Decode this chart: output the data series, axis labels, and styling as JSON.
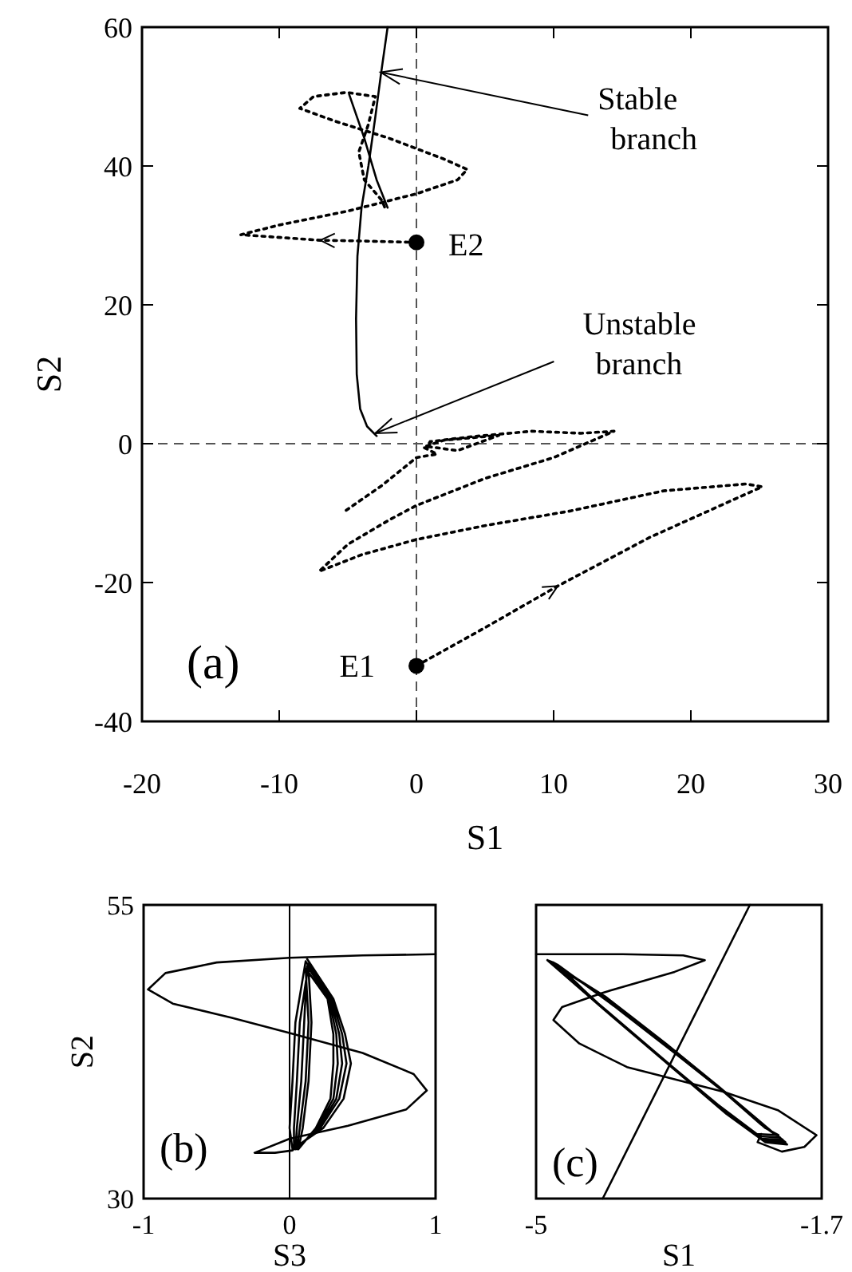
{
  "chart_data": [
    {
      "type": "line",
      "xlabel": "S1",
      "ylabel": "S2",
      "xlim": [
        -20,
        30
      ],
      "xticks": [
        -20,
        -10,
        0,
        10,
        20,
        30
      ],
      "ylim": [
        -40,
        60
      ],
      "yticks": [
        -40,
        -20,
        0,
        20,
        40,
        60
      ],
      "ref_lines": [
        {
          "axis": "x",
          "value": 0,
          "line_style": "dashed",
          "color": "#555555"
        },
        {
          "axis": "y",
          "value": 0,
          "line_style": "dashed",
          "color": "#555555"
        }
      ],
      "series": [
        {
          "color": "#000000",
          "line_style": "solid",
          "x": [
            -2.1,
            -2.6,
            -3.0,
            -3.5,
            -4.0,
            -4.3,
            -4.4,
            -4.35,
            -4.1,
            -3.6,
            -2.9
          ],
          "values": [
            60,
            53,
            47,
            40,
            34,
            27,
            18,
            10,
            5,
            2.5,
            1.1
          ]
        },
        {
          "color": "#000000",
          "line_style": "dotted",
          "x": [
            0,
            -4,
            -7,
            -12.8,
            -10,
            -5,
            0,
            3,
            3.7,
            2,
            -2,
            -6,
            -8.5,
            -7.5,
            -5.1,
            -3,
            -3.5,
            -4.2,
            -3.8,
            -2.5,
            -2.3
          ],
          "values": [
            29,
            29.2,
            29.3,
            30.1,
            31.5,
            33.5,
            36,
            38,
            39.5,
            41,
            44,
            46.5,
            48.3,
            50,
            50.6,
            50,
            46,
            42,
            38,
            35,
            34
          ]
        },
        {
          "color": "#000000",
          "line_style": "solid",
          "x": [
            -4.9,
            -3.8,
            -2.9,
            -2.1
          ],
          "values": [
            50.3,
            44,
            38,
            34
          ]
        },
        {
          "color": "#000000",
          "line_style": "dotted",
          "x": [
            0,
            5,
            10.3,
            17,
            25.2,
            24,
            18,
            11.2,
            5,
            0,
            -4,
            -7.1,
            -5,
            -2,
            0,
            5,
            10,
            14.4,
            12,
            8.4,
            4,
            1,
            0.8,
            3,
            6,
            2,
            0.5,
            1.5,
            0,
            -2.5,
            -5.2
          ],
          "values": [
            -32,
            -26.5,
            -20.5,
            -13.5,
            -6.2,
            -5.8,
            -6.8,
            -9.7,
            -11.8,
            -13.8,
            -16,
            -18.4,
            -14.5,
            -11,
            -8.9,
            -5,
            -2,
            1.8,
            1.5,
            1.8,
            1,
            0.3,
            -0.4,
            -1,
            1.2,
            0.5,
            -0.5,
            -1.5,
            -2,
            -6,
            -9.7
          ]
        },
        {
          "type": "scatter",
          "color": "#000000",
          "marker": "circle",
          "x": [
            0,
            0
          ],
          "values": [
            29,
            -32
          ]
        }
      ],
      "annotations": [
        {
          "text": "Stable branch",
          "x": -2.6,
          "y": 53.5
        },
        {
          "text": "Unstable branch",
          "x": -3.0,
          "y": 1.5
        },
        {
          "text": "E2",
          "x": 0,
          "y": 29
        },
        {
          "text": "E1",
          "x": 0,
          "y": -32
        },
        "(a)"
      ]
    },
    {
      "type": "line",
      "xlabel": "S3",
      "ylabel": "S2",
      "xlim": [
        -1,
        1
      ],
      "xticks": [
        -1,
        0,
        1
      ],
      "ylim": [
        30,
        55
      ],
      "yticks": [
        30,
        55
      ],
      "ref_lines": [
        {
          "axis": "x",
          "value": 0,
          "line_style": "solid",
          "color": "#000000"
        }
      ],
      "series": [
        {
          "color": "#000000",
          "line_style": "solid",
          "x": [
            1,
            0.5,
            0,
            -0.5,
            -0.85,
            -0.97,
            -0.8,
            -0.4,
            0,
            0.5,
            0.85,
            0.94,
            0.8,
            0.4,
            0,
            -0.24,
            -0.1,
            0.02,
            0.05
          ],
          "values": [
            50.8,
            50.7,
            50.5,
            50.1,
            49.2,
            47.8,
            46.6,
            45.4,
            44.1,
            42.4,
            40.6,
            39.2,
            37.6,
            36.2,
            35.1,
            33.9,
            33.9,
            34.1,
            35
          ]
        },
        {
          "color": "#000000",
          "line_style": "solid",
          "x": [
            0.12,
            0.3,
            0.38,
            0.42,
            0.37,
            0.23,
            0.02,
            0.0,
            0.02,
            0.04,
            0.11,
            0.29,
            0.36,
            0.39,
            0.34,
            0.21,
            0.03,
            0.03,
            0.05,
            0.07,
            0.13,
            0.28,
            0.34,
            0.36,
            0.32,
            0.2,
            0.04,
            0.05,
            0.08,
            0.1,
            0.12,
            0.27,
            0.32,
            0.33,
            0.3,
            0.19,
            0.05,
            0.07,
            0.11,
            0.13,
            0.11,
            0.26,
            0.3,
            0.3,
            0.28,
            0.18,
            0.06,
            0.09,
            0.13,
            0.15,
            0.13
          ],
          "values": [
            50.4,
            47,
            44,
            41.5,
            38.5,
            36,
            34.2,
            36,
            40,
            45,
            50.2,
            47,
            44,
            41.5,
            38.5,
            36,
            34.2,
            36,
            40,
            45,
            50.0,
            47,
            44,
            41.5,
            38.5,
            36,
            34.2,
            36,
            40,
            45,
            49.8,
            47,
            44,
            41.5,
            38.5,
            36,
            34.2,
            36,
            40,
            45,
            49.6,
            47,
            44,
            41.5,
            38.5,
            36,
            34.2,
            36,
            40,
            45,
            49.4
          ]
        }
      ],
      "annotations": [
        "(b)"
      ]
    },
    {
      "type": "line",
      "xlabel": "S1",
      "xlim": [
        -5,
        -1.7
      ],
      "xticks": [
        -5,
        -1.7
      ],
      "ylim": [
        30,
        55
      ],
      "tick_labels": "x",
      "series": [
        {
          "color": "#000000",
          "line_style": "solid",
          "x": [
            -4.23,
            -2.53
          ],
          "values": [
            30,
            55
          ]
        },
        {
          "color": "#000000",
          "line_style": "solid",
          "x": [
            -5,
            -4,
            -3.3,
            -3.05,
            -3.4,
            -4.24,
            -4.7,
            -4.8,
            -4.5,
            -3.95,
            -2.84,
            -2.2,
            -1.76,
            -1.9,
            -2.16,
            -2.44,
            -2.4
          ],
          "values": [
            50.8,
            50.8,
            50.7,
            50.3,
            49.3,
            47.5,
            46.3,
            45.2,
            43.2,
            41.2,
            39.1,
            37.5,
            35.4,
            34.4,
            34.0,
            34.8,
            35.5
          ]
        },
        {
          "color": "#000000",
          "line_style": "solid",
          "x": [
            -4.87,
            -4.2,
            -3.5,
            -2.9,
            -2.45,
            -2.1,
            -2.35,
            -2.8,
            -3.5,
            -4.2,
            -4.87,
            -4.8,
            -4.15,
            -3.45,
            -2.85,
            -2.4,
            -2.15,
            -2.4,
            -2.85,
            -3.55,
            -4.25,
            -4.8,
            -4.75,
            -4.1,
            -3.4,
            -2.8,
            -2.35,
            -2.2,
            -2.45,
            -2.9,
            -3.6,
            -4.3,
            -4.75,
            -4.85,
            -4.18,
            -3.48,
            -2.88,
            -2.42,
            -2.12,
            -2.38,
            -2.82,
            -3.52,
            -4.22,
            -4.85,
            -4.78,
            -4.12,
            -3.42,
            -2.82,
            -2.38,
            -2.18,
            -2.42,
            -2.88,
            -3.58,
            -4.28,
            -4.78
          ],
          "values": [
            50.3,
            47.2,
            43.2,
            39.6,
            36.8,
            34.6,
            34.8,
            37.2,
            41.6,
            46,
            50.3,
            50.1,
            46.8,
            42.8,
            39.2,
            36.3,
            35,
            35.1,
            37.6,
            42,
            46.4,
            50.1,
            49.9,
            46.4,
            42.4,
            38.9,
            36,
            35.4,
            35.5,
            38,
            42.3,
            46.7,
            49.9,
            50.2,
            47,
            43,
            39.4,
            36.5,
            34.8,
            35,
            37.4,
            41.8,
            46.2,
            50.2,
            50,
            46.6,
            42.6,
            39.1,
            36.2,
            35.2,
            35.3,
            37.8,
            42.2,
            46.6,
            50
          ]
        }
      ],
      "annotations": [
        "(c)"
      ]
    }
  ]
}
